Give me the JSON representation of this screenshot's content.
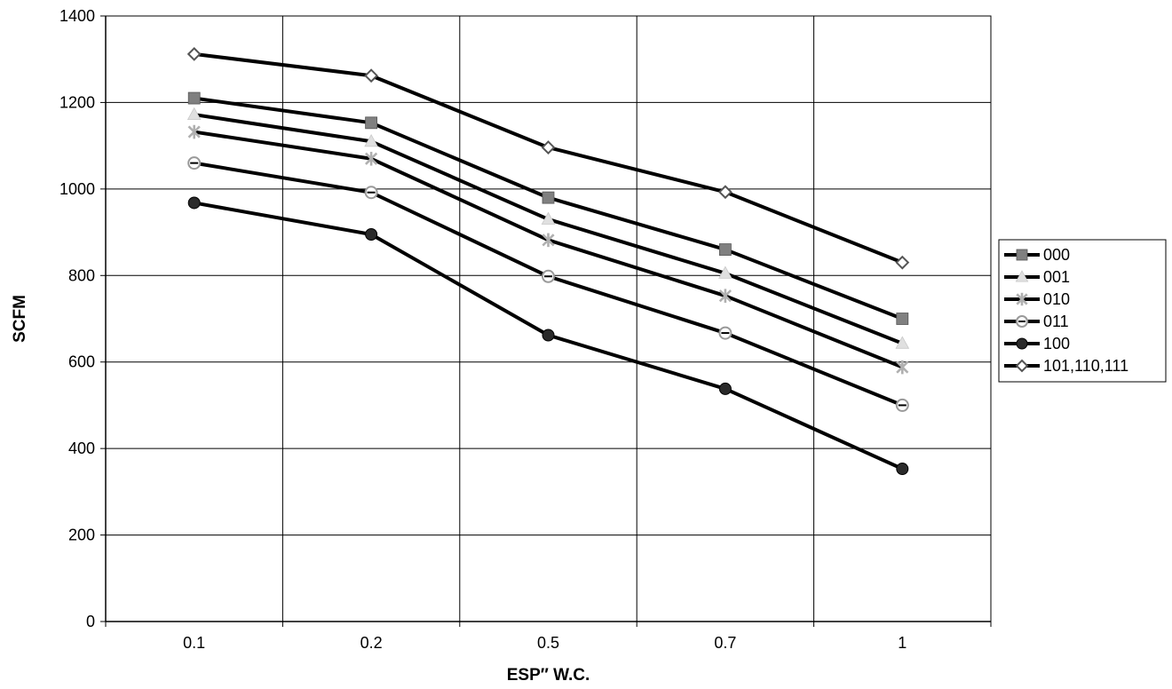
{
  "chart_data": {
    "type": "line",
    "categories": [
      "0.1",
      "0.2",
      "0.5",
      "0.7",
      "1"
    ],
    "xlabel": "ESP″ W.C.",
    "ylabel": "SCFM",
    "ylim": [
      0,
      1400
    ],
    "yticks": [
      "0",
      "200",
      "400",
      "600",
      "800",
      "1000",
      "1200",
      "1400"
    ],
    "grid": true,
    "legend_position": "right",
    "series": [
      {
        "name": "000",
        "marker": "square",
        "color": "#808080",
        "values": [
          1210,
          1153,
          980,
          860,
          700
        ]
      },
      {
        "name": "001",
        "marker": "triangle",
        "color": "#e0e0e0",
        "values": [
          1172,
          1110,
          930,
          805,
          643
        ]
      },
      {
        "name": "010",
        "marker": "star",
        "color": "#b0b0b0",
        "values": [
          1132,
          1070,
          882,
          753,
          588
        ]
      },
      {
        "name": "011",
        "marker": "open-circle",
        "color": "#999999",
        "values": [
          1060,
          992,
          798,
          667,
          500
        ]
      },
      {
        "name": "100",
        "marker": "filled-circle",
        "color": "#2a2a2a",
        "values": [
          968,
          895,
          662,
          538,
          353
        ]
      },
      {
        "name": "101,110,111",
        "marker": "diamond",
        "color": "#555555",
        "values": [
          1312,
          1262,
          1096,
          993,
          830
        ]
      }
    ]
  }
}
